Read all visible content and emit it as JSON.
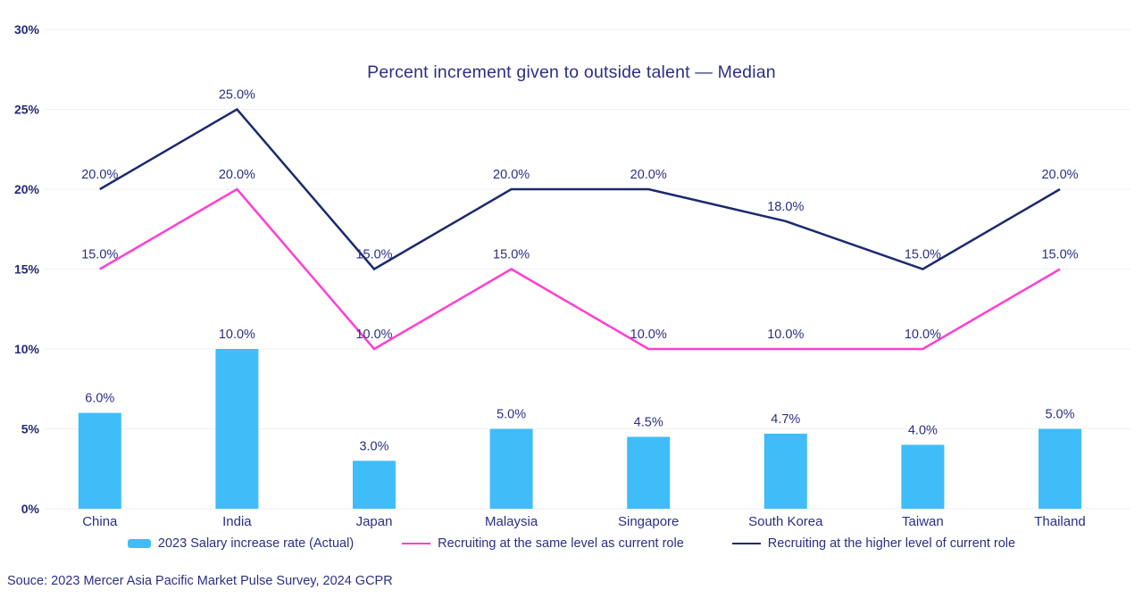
{
  "source": "Souce: 2023 Mercer Asia Pacific Market Pulse Survey, 2024 GCPR",
  "colors": {
    "text_navy": "#2b2f84",
    "axis_tick_navy": "#242a75",
    "bar_blue": "#3fbdf8",
    "line_pink": "#ff3ed2",
    "line_navy": "#1b2a6e",
    "gridline": "#f1f2f5"
  },
  "chart_data": {
    "type": "combo",
    "title": "Percent increment given to outside talent — Median",
    "categories": [
      "China",
      "India",
      "Japan",
      "Malaysia",
      "Singapore",
      "South Korea",
      "Taiwan",
      "Thailand"
    ],
    "series": [
      {
        "name": "2023 Salary increase rate (Actual)",
        "type": "bar",
        "color": "#3fbdf8",
        "values": [
          6.0,
          10.0,
          3.0,
          5.0,
          4.5,
          4.7,
          4.0,
          5.0
        ],
        "labels": [
          "6.0%",
          "10.0%",
          "3.0%",
          "5.0%",
          "4.5%",
          "4.7%",
          "4.0%",
          "5.0%"
        ]
      },
      {
        "name": "Recruiting at the same level as current role",
        "type": "line",
        "color": "#ff3ed2",
        "values": [
          15.0,
          20.0,
          10.0,
          15.0,
          10.0,
          10.0,
          10.0,
          15.0
        ],
        "labels": [
          "15.0%",
          "20.0%",
          "10.0%",
          "15.0%",
          "10.0%",
          "10.0%",
          "10.0%",
          "15.0%"
        ]
      },
      {
        "name": "Recruiting at the higher level of current role",
        "type": "line",
        "color": "#1b2a6e",
        "values": [
          20.0,
          25.0,
          15.0,
          20.0,
          20.0,
          18.0,
          15.0,
          20.0
        ],
        "labels": [
          "20.0%",
          "25.0%",
          "15.0%",
          "20.0%",
          "20.0%",
          "18.0%",
          "15.0%",
          "20.0%"
        ]
      }
    ],
    "y_axis": {
      "min": 0,
      "max": 30,
      "step": 5,
      "ticks": [
        "0%",
        "5%",
        "10%",
        "15%",
        "20%",
        "25%",
        "30%"
      ]
    },
    "grid": "horizontal",
    "legend_position": "bottom"
  }
}
